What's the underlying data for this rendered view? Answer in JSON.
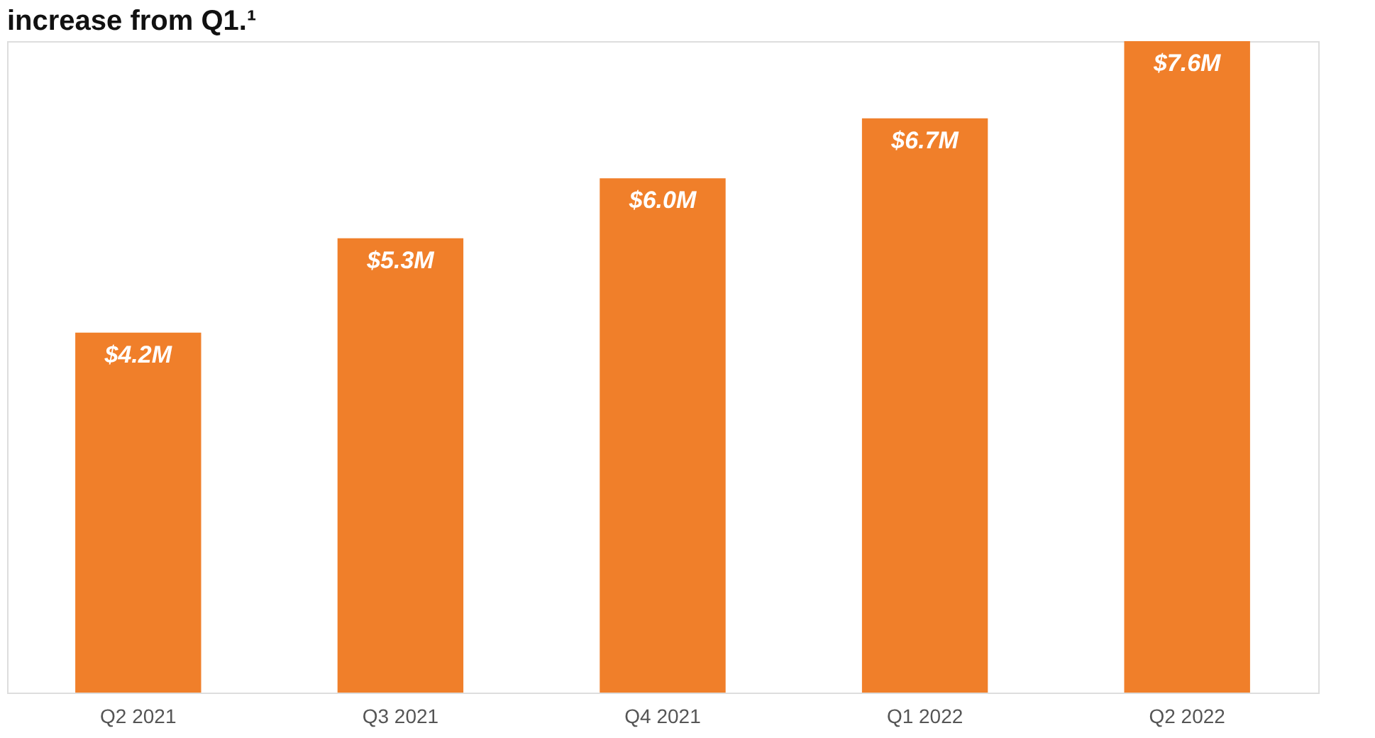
{
  "chart_data": {
    "type": "bar",
    "title": "increase from Q1.¹",
    "categories": [
      "Q2 2021",
      "Q3 2021",
      "Q4 2021",
      "Q1 2022",
      "Q2 2022"
    ],
    "values": [
      4.2,
      5.3,
      6.0,
      6.7,
      7.6
    ],
    "value_labels": [
      "$4.2M",
      "$5.3M",
      "$6.0M",
      "$6.7M",
      "$7.6M"
    ],
    "color": "#f07f2a"
  }
}
